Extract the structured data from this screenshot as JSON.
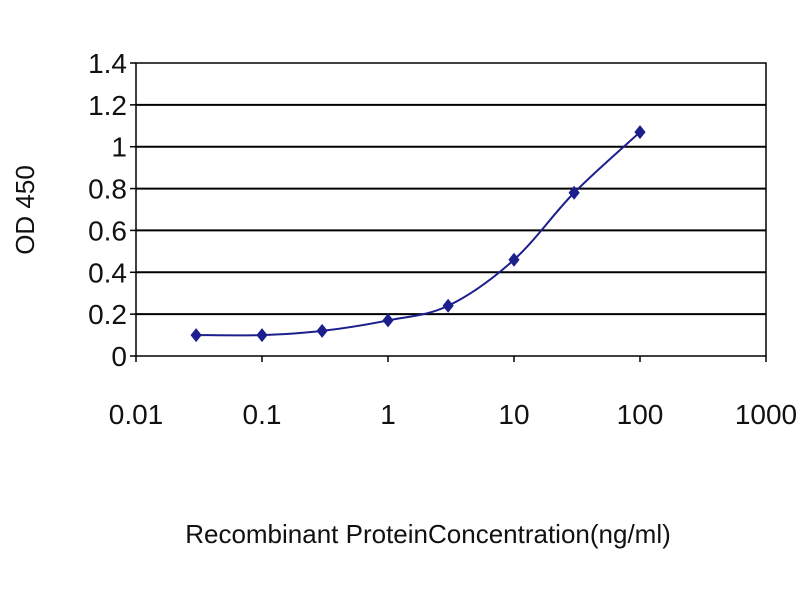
{
  "chart_data": {
    "type": "line",
    "title": "",
    "xlabel": "Recombinant ProteinConcentration(ng/ml)",
    "ylabel": "OD 450",
    "x_scale": "log",
    "xlim": [
      0.01,
      1000
    ],
    "ylim": [
      0,
      1.4
    ],
    "x_ticks": [
      0.01,
      0.1,
      1,
      10,
      100,
      1000
    ],
    "x_tick_labels": [
      "0.01",
      "0.1",
      "1",
      "10",
      "100",
      "1000"
    ],
    "y_ticks": [
      0,
      0.2,
      0.4,
      0.6,
      0.8,
      1.0,
      1.2,
      1.4
    ],
    "y_tick_labels": [
      "0",
      "0.2",
      "0.4",
      "0.6",
      "0.8",
      "1",
      "1.2",
      "1.4"
    ],
    "grid": "horizontal",
    "legend": "none",
    "series": [
      {
        "x": [
          0.03,
          0.1,
          0.3,
          1,
          3,
          10,
          30,
          100
        ],
        "y": [
          0.1,
          0.1,
          0.12,
          0.17,
          0.24,
          0.46,
          0.78,
          1.07
        ]
      }
    ]
  },
  "colors": {
    "series": "#1c1f8c",
    "grid": "#000000",
    "plot_background": "#ffffff"
  }
}
